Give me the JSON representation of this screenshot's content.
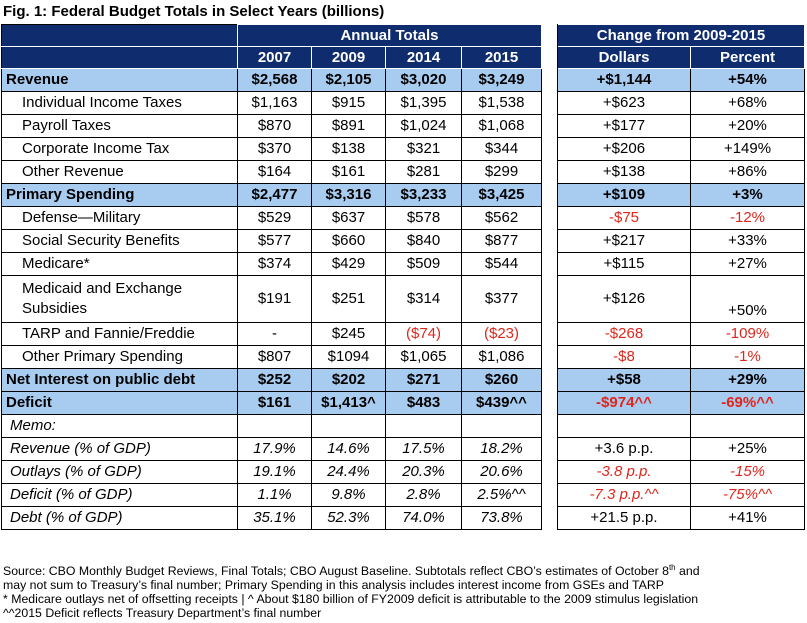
{
  "title": "Fig. 1: Federal Budget Totals in Select Years (billions)",
  "header": {
    "group_annual": "Annual Totals",
    "group_change": "Change from 2009-2015",
    "years": [
      "2007",
      "2009",
      "2014",
      "2015"
    ],
    "dollars": "Dollars",
    "percent": "Percent"
  },
  "rows": {
    "revenue": {
      "label": "Revenue",
      "v": [
        "$2,568",
        "$2,105",
        "$3,020",
        "$3,249"
      ],
      "d": "+$1,144",
      "p": "+54%"
    },
    "individual": {
      "label": "Individual Income Taxes",
      "v": [
        "$1,163",
        "$915",
        "$1,395",
        "$1,538"
      ],
      "d": "+$623",
      "p": "+68%"
    },
    "payroll": {
      "label": "Payroll Taxes",
      "v": [
        "$870",
        "$891",
        "$1,024",
        "$1,068"
      ],
      "d": "+$177",
      "p": "+20%"
    },
    "corporate": {
      "label": "Corporate Income Tax",
      "v": [
        "$370",
        "$138",
        "$321",
        "$344"
      ],
      "d": "+$206",
      "p": "+149%"
    },
    "other_rev": {
      "label": "Other Revenue",
      "v": [
        "$164",
        "$161",
        "$281",
        "$299"
      ],
      "d": "+$138",
      "p": "+86%"
    },
    "primary": {
      "label": "Primary Spending",
      "v": [
        "$2,477",
        "$3,316",
        "$3,233",
        "$3,425"
      ],
      "d": "+$109",
      "p": "+3%"
    },
    "defense": {
      "label": "Defense—Military",
      "v": [
        "$529",
        "$637",
        "$578",
        "$562"
      ],
      "d": "-$75",
      "p": "-12%"
    },
    "social": {
      "label": "Social Security Benefits",
      "v": [
        "$577",
        "$660",
        "$840",
        "$877"
      ],
      "d": "+$217",
      "p": "+33%"
    },
    "medicare": {
      "label": "Medicare*",
      "v": [
        "$374",
        "$429",
        "$509",
        "$544"
      ],
      "d": "+$115",
      "p": "+27%"
    },
    "medicaid": {
      "label": "Medicaid and Exchange Subsidies",
      "v": [
        "$191",
        "$251",
        "$314",
        "$377"
      ],
      "d": "+$126",
      "p": "+50%"
    },
    "tarp": {
      "label": "TARP and Fannie/Freddie",
      "v": [
        "-",
        "$245",
        "($74)",
        "($23)"
      ],
      "d": "-$268",
      "p": "-109%"
    },
    "other_prim": {
      "label": "Other Primary Spending",
      "v": [
        "$807",
        "$1094",
        "$1,065",
        "$1,086"
      ],
      "d": "-$8",
      "p": "-1%"
    },
    "interest": {
      "label": "Net Interest on public debt",
      "v": [
        "$252",
        "$202",
        "$271",
        "$260"
      ],
      "d": "+$58",
      "p": "+29%"
    },
    "deficit": {
      "label": "Deficit",
      "v": [
        "$161",
        "$1,413^",
        "$483",
        "$439^^"
      ],
      "d": "-$974^^",
      "p": "-69%^^"
    },
    "memo": {
      "label": "Memo:"
    },
    "rev_gdp": {
      "label": "Revenue (% of GDP)",
      "v": [
        "17.9%",
        "14.6%",
        "17.5%",
        "18.2%"
      ],
      "d": "+3.6 p.p.",
      "p": "+25%"
    },
    "out_gdp": {
      "label": "Outlays (% of GDP)",
      "v": [
        "19.1%",
        "24.4%",
        "20.3%",
        "20.6%"
      ],
      "d": "-3.8 p.p.",
      "p": "-15%"
    },
    "def_gdp": {
      "label": "Deficit (% of GDP)",
      "v": [
        "1.1%",
        "9.8%",
        "2.8%",
        "2.5%^^"
      ],
      "d": "-7.3 p.p.^^",
      "p": "-75%^^"
    },
    "debt_gdp": {
      "label": "Debt (% of GDP)",
      "v": [
        "35.1%",
        "52.3%",
        "74.0%",
        "73.8%"
      ],
      "d": "+21.5 p.p.",
      "p": "+41%"
    }
  },
  "notes": {
    "line1a": "Source: CBO Monthly Budget Reviews, Final Totals; CBO August Baseline. Subtotals reflect CBO’s estimates of October 8",
    "line1sup": "th",
    "line1b": " and",
    "line2": "may not sum to Treasury’s final number; Primary Spending in this analysis includes interest income from GSEs and TARP",
    "line3": "* Medicare outlays net of offsetting receipts   |   ^ About $180 billion of FY2009 deficit is attributable to the 2009 stimulus legislation",
    "line4": "^^2015 Deficit reflects Treasury Department’s final number"
  },
  "colors": {
    "header_bg": "#0f2d6e",
    "section_bg": "#a8cbf0",
    "negative": "#e0261c"
  }
}
